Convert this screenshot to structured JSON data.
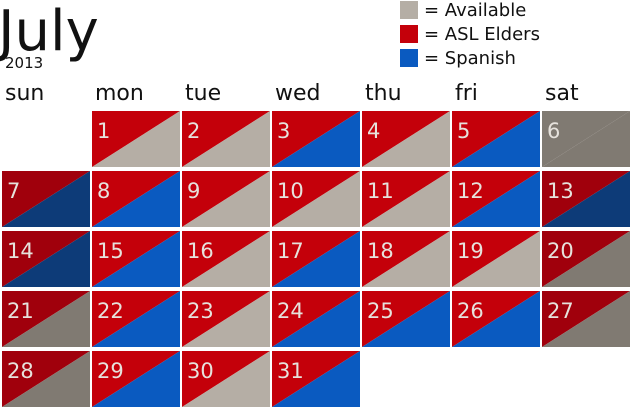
{
  "header": {
    "title": "July",
    "year": "2013"
  },
  "legend": [
    {
      "label": "= Available",
      "color": "#b5aea5"
    },
    {
      "label": "= ASL Elders",
      "color": "#c4000a"
    },
    {
      "label": "= Spanish",
      "color": "#0a5ac0"
    }
  ],
  "weekdays": [
    "sun",
    "mon",
    "tue",
    "wed",
    "thu",
    "fri",
    "sat"
  ],
  "days": [
    {
      "day": "1",
      "colors": [
        "#c4000a",
        "#b5aea5"
      ]
    },
    {
      "day": "2",
      "colors": [
        "#c4000a",
        "#b5aea5"
      ]
    },
    {
      "day": "3",
      "colors": [
        "#c4000a",
        "#0a5ac0"
      ]
    },
    {
      "day": "4",
      "colors": [
        "#c4000a",
        "#b5aea5"
      ]
    },
    {
      "day": "5",
      "colors": [
        "#c4000a",
        "#0a5ac0"
      ]
    },
    {
      "day": "6",
      "colors": [
        "#807a72",
        "#807a72"
      ]
    },
    {
      "day": "7",
      "colors": [
        "#a0000c",
        "#0d3b78"
      ]
    },
    {
      "day": "8",
      "colors": [
        "#c4000a",
        "#0a5ac0"
      ]
    },
    {
      "day": "9",
      "colors": [
        "#c4000a",
        "#b5aea5"
      ]
    },
    {
      "day": "10",
      "colors": [
        "#c4000a",
        "#b5aea5"
      ]
    },
    {
      "day": "11",
      "colors": [
        "#c4000a",
        "#b5aea5"
      ]
    },
    {
      "day": "12",
      "colors": [
        "#c4000a",
        "#0a5ac0"
      ]
    },
    {
      "day": "13",
      "colors": [
        "#a0000c",
        "#0d3b78"
      ]
    },
    {
      "day": "14",
      "colors": [
        "#a0000c",
        "#0d3b78"
      ]
    },
    {
      "day": "15",
      "colors": [
        "#c4000a",
        "#0a5ac0"
      ]
    },
    {
      "day": "16",
      "colors": [
        "#c4000a",
        "#b5aea5"
      ]
    },
    {
      "day": "17",
      "colors": [
        "#c4000a",
        "#0a5ac0"
      ]
    },
    {
      "day": "18",
      "colors": [
        "#c4000a",
        "#b5aea5"
      ]
    },
    {
      "day": "19",
      "colors": [
        "#c4000a",
        "#b5aea5"
      ]
    },
    {
      "day": "20",
      "colors": [
        "#a0000c",
        "#807a72"
      ]
    },
    {
      "day": "21",
      "colors": [
        "#a0000c",
        "#807a72"
      ]
    },
    {
      "day": "22",
      "colors": [
        "#c4000a",
        "#0a5ac0"
      ]
    },
    {
      "day": "23",
      "colors": [
        "#c4000a",
        "#b5aea5"
      ]
    },
    {
      "day": "24",
      "colors": [
        "#c4000a",
        "#0a5ac0"
      ]
    },
    {
      "day": "25",
      "colors": [
        "#c4000a",
        "#0a5ac0"
      ]
    },
    {
      "day": "26",
      "colors": [
        "#c4000a",
        "#0a5ac0"
      ]
    },
    {
      "day": "27",
      "colors": [
        "#a0000c",
        "#807a72"
      ]
    },
    {
      "day": "28",
      "colors": [
        "#a0000c",
        "#807a72"
      ]
    },
    {
      "day": "29",
      "colors": [
        "#c4000a",
        "#0a5ac0"
      ]
    },
    {
      "day": "30",
      "colors": [
        "#c4000a",
        "#b5aea5"
      ]
    },
    {
      "day": "31",
      "colors": [
        "#c4000a",
        "#0a5ac0"
      ]
    }
  ]
}
